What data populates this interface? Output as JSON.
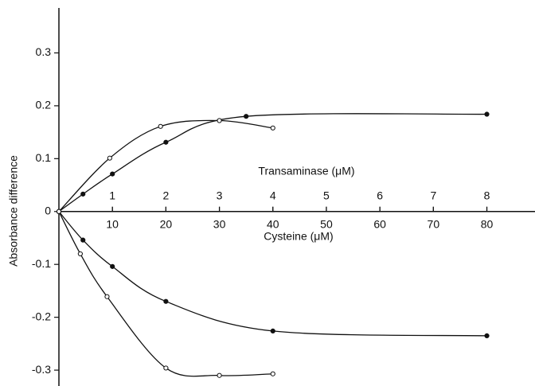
{
  "chart_data": {
    "type": "line",
    "ylabel": "Absorbance difference",
    "xlabel": "Cysteine (μM)",
    "x2label": "Transaminase (μM)",
    "xlim": [
      0,
      89
    ],
    "xticks": [
      10,
      20,
      30,
      40,
      50,
      60,
      70,
      80
    ],
    "x2lim": [
      0,
      8.9
    ],
    "x2ticks": [
      1,
      2,
      3,
      4,
      5,
      6,
      7,
      8
    ],
    "ylim": [
      -0.33,
      0.385
    ],
    "yticks": [
      0.3,
      0.2,
      0.1,
      0,
      -0.1,
      -0.2,
      -0.3
    ],
    "color": "#111111",
    "series": [
      {
        "marker": "filled",
        "x": [
          0,
          4.5,
          10,
          20,
          35,
          80
        ],
        "values": [
          0,
          0.033,
          0.071,
          0.131,
          0.18,
          0.184
        ]
      },
      {
        "marker": "open",
        "x": [
          0,
          9.5,
          19,
          30,
          40
        ],
        "values": [
          0,
          0.101,
          0.161,
          0.172,
          0.158
        ]
      },
      {
        "marker": "filled",
        "x": [
          0,
          4.5,
          10,
          20,
          40,
          80
        ],
        "values": [
          0,
          -0.054,
          -0.104,
          -0.17,
          -0.226,
          -0.235
        ]
      },
      {
        "marker": "open",
        "x": [
          0,
          4,
          9,
          20,
          30,
          40
        ],
        "values": [
          0,
          -0.08,
          -0.161,
          -0.296,
          -0.31,
          -0.307
        ]
      }
    ]
  }
}
